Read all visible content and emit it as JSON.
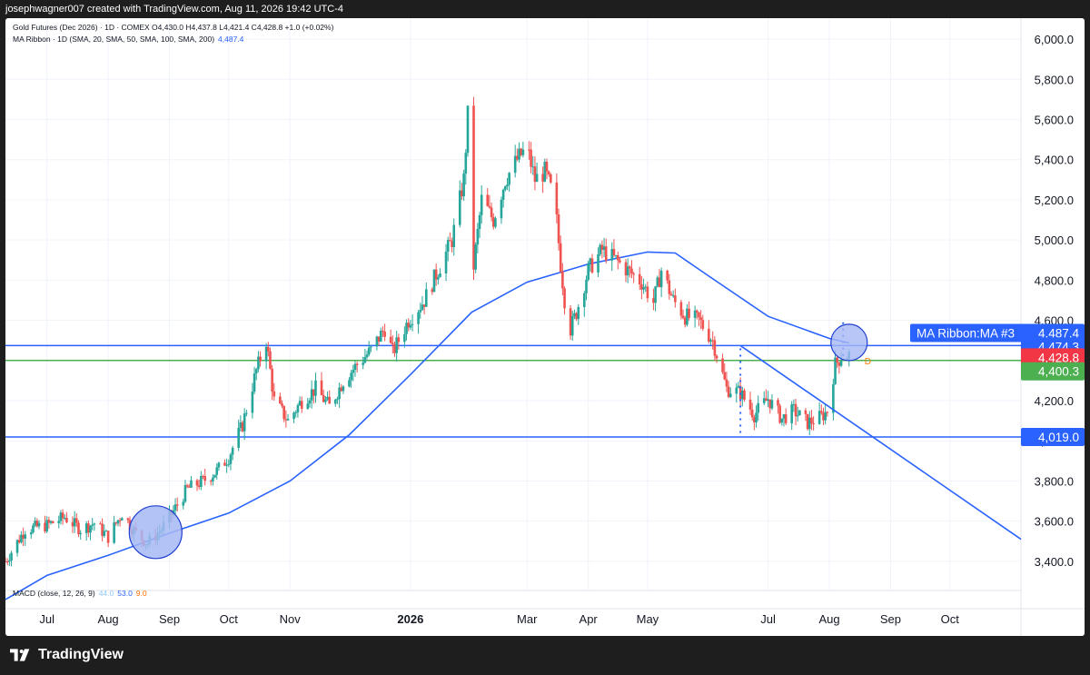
{
  "header": {
    "credit": "josephwagner007 created with TradingView.com, Aug 11, 2026 19:42 UTC-4"
  },
  "legend": {
    "symbol_line": "Gold Futures (Dec 2026) · 1D · COMEX  O4,430.0  H4,437.8  L4,421.4  C4,428.8  +1.0 (+0.02%)",
    "ma_line": "MA Ribbon · 1D (SMA, 20, SMA, 50, SMA, 100, SMA, 200)",
    "ma_value": "4,487.4"
  },
  "macd": {
    "label": "MACD (close, 12, 26, 9)",
    "v1": "44.0",
    "v2": "53.0",
    "v3": "9.0"
  },
  "footer": {
    "brand": "TradingView"
  },
  "colors": {
    "up": "#26a69a",
    "down": "#ef5350",
    "ma": "#2962ff",
    "level_green": "#4caf50",
    "circle_fill": "#a6b8f5",
    "last_price": "#f23645"
  },
  "chart_data": {
    "type": "candlestick",
    "ylim": [
      3300,
      6050
    ],
    "y_ticks": [
      "6,000.0",
      "5,800.0",
      "5,600.0",
      "5,400.0",
      "5,200.0",
      "5,000.0",
      "4,800.0",
      "4,600.0",
      "4,400.0",
      "4,200.0",
      "4,000.0",
      "3,800.0",
      "3,600.0",
      "3,400.0"
    ],
    "y_tick_values": [
      6000,
      5800,
      5600,
      5400,
      5200,
      5000,
      4800,
      4600,
      4400,
      4200,
      4000,
      3800,
      3600,
      3400
    ],
    "x_ticks": [
      {
        "label": "Jul",
        "date": "2025-07-01"
      },
      {
        "label": "Aug",
        "date": "2025-08-01"
      },
      {
        "label": "Sep",
        "date": "2025-09-01"
      },
      {
        "label": "Oct",
        "date": "2025-10-01"
      },
      {
        "label": "Nov",
        "date": "2025-11-01"
      },
      {
        "label": "2026",
        "date": "2026-01-01"
      },
      {
        "label": "Mar",
        "date": "2026-03-01"
      },
      {
        "label": "Apr",
        "date": "2026-04-01"
      },
      {
        "label": "May",
        "date": "2026-05-01"
      },
      {
        "label": "Jul",
        "date": "2026-07-01"
      },
      {
        "label": "Aug",
        "date": "2026-08-01"
      },
      {
        "label": "Sep",
        "date": "2026-09-01"
      },
      {
        "label": "Oct",
        "date": "2026-10-01"
      }
    ],
    "x_range": [
      "2025-06-10",
      "2026-11-06"
    ],
    "price_path": [
      [
        "2025-06-10",
        3400
      ],
      [
        "2025-06-20",
        3560
      ],
      [
        "2025-07-01",
        3580
      ],
      [
        "2025-07-10",
        3620
      ],
      [
        "2025-07-18",
        3560
      ],
      [
        "2025-07-25",
        3590
      ],
      [
        "2025-08-01",
        3520
      ],
      [
        "2025-08-08",
        3640
      ],
      [
        "2025-08-15",
        3540
      ],
      [
        "2025-08-21",
        3490
      ],
      [
        "2025-08-28",
        3560
      ],
      [
        "2025-09-03",
        3650
      ],
      [
        "2025-09-10",
        3760
      ],
      [
        "2025-09-18",
        3800
      ],
      [
        "2025-09-25",
        3850
      ],
      [
        "2025-10-01",
        3920
      ],
      [
        "2025-10-08",
        4080
      ],
      [
        "2025-10-15",
        4350
      ],
      [
        "2025-10-20",
        4500
      ],
      [
        "2025-10-24",
        4200
      ],
      [
        "2025-10-31",
        4100
      ],
      [
        "2025-11-07",
        4200
      ],
      [
        "2025-11-14",
        4260
      ],
      [
        "2025-11-21",
        4170
      ],
      [
        "2025-11-28",
        4300
      ],
      [
        "2025-12-05",
        4380
      ],
      [
        "2025-12-12",
        4450
      ],
      [
        "2025-12-19",
        4560
      ],
      [
        "2025-12-23",
        4440
      ],
      [
        "2025-12-31",
        4600
      ],
      [
        "2026-01-08",
        4700
      ],
      [
        "2026-01-15",
        4850
      ],
      [
        "2026-01-22",
        5000
      ],
      [
        "2026-01-28",
        5300
      ],
      [
        "2026-01-30",
        5620
      ],
      [
        "2026-02-02",
        4870
      ],
      [
        "2026-02-06",
        5200
      ],
      [
        "2026-02-12",
        5100
      ],
      [
        "2026-02-18",
        5300
      ],
      [
        "2026-02-24",
        5400
      ],
      [
        "2026-03-01",
        5460
      ],
      [
        "2026-03-05",
        5300
      ],
      [
        "2026-03-10",
        5340
      ],
      [
        "2026-03-15",
        5200
      ],
      [
        "2026-03-18",
        4880
      ],
      [
        "2026-03-22",
        4530
      ],
      [
        "2026-03-26",
        4640
      ],
      [
        "2026-04-01",
        4850
      ],
      [
        "2026-04-08",
        4950
      ],
      [
        "2026-04-15",
        4900
      ],
      [
        "2026-04-22",
        4840
      ],
      [
        "2026-04-28",
        4790
      ],
      [
        "2026-05-04",
        4690
      ],
      [
        "2026-05-08",
        4850
      ],
      [
        "2026-05-14",
        4700
      ],
      [
        "2026-05-20",
        4620
      ],
      [
        "2026-05-27",
        4600
      ],
      [
        "2026-06-03",
        4500
      ],
      [
        "2026-06-10",
        4260
      ],
      [
        "2026-06-17",
        4240
      ],
      [
        "2026-06-24",
        4130
      ],
      [
        "2026-07-01",
        4210
      ],
      [
        "2026-07-08",
        4110
      ],
      [
        "2026-07-14",
        4150
      ],
      [
        "2026-07-21",
        4090
      ],
      [
        "2026-07-28",
        4120
      ],
      [
        "2026-07-31",
        4150
      ],
      [
        "2026-08-04",
        4380
      ],
      [
        "2026-08-07",
        4420
      ],
      [
        "2026-08-11",
        4428.8
      ]
    ],
    "ma_path": [
      [
        "2025-06-10",
        3210
      ],
      [
        "2025-07-01",
        3330
      ],
      [
        "2025-08-01",
        3430
      ],
      [
        "2025-09-01",
        3540
      ],
      [
        "2025-10-01",
        3640
      ],
      [
        "2025-11-01",
        3800
      ],
      [
        "2025-12-01",
        4030
      ],
      [
        "2026-01-01",
        4330
      ],
      [
        "2026-02-01",
        4640
      ],
      [
        "2026-03-01",
        4790
      ],
      [
        "2026-04-01",
        4880
      ],
      [
        "2026-05-01",
        4940
      ],
      [
        "2026-05-15",
        4935
      ],
      [
        "2026-06-01",
        4820
      ],
      [
        "2026-07-01",
        4620
      ],
      [
        "2026-08-01",
        4510
      ],
      [
        "2026-08-11",
        4487.4
      ]
    ],
    "horizontal_levels": [
      {
        "value": 4474.3,
        "label": "4,474.3",
        "color": "#2962ff"
      },
      {
        "value": 4400.3,
        "label": "4,400.3",
        "color": "#4caf50"
      },
      {
        "value": 4019.0,
        "label": "4,019.0",
        "color": "#2962ff"
      }
    ],
    "trendline": {
      "from": [
        "2026-06-17",
        4474
      ],
      "to": [
        "2026-11-06",
        3510
      ]
    },
    "circles": [
      {
        "center": [
          "2025-08-25",
          3545
        ],
        "radius_value": "large"
      },
      {
        "center": [
          "2026-08-11",
          4490
        ],
        "radius_value": "small"
      }
    ],
    "price_labels": {
      "ma_label": "MA Ribbon:MA #3",
      "ma_value": "4,487.4",
      "level_top": "4,474.3",
      "last_price": "4,428.8",
      "level_green": "4,400.3",
      "level_low": "4,019.0",
      "marker": "D"
    }
  }
}
